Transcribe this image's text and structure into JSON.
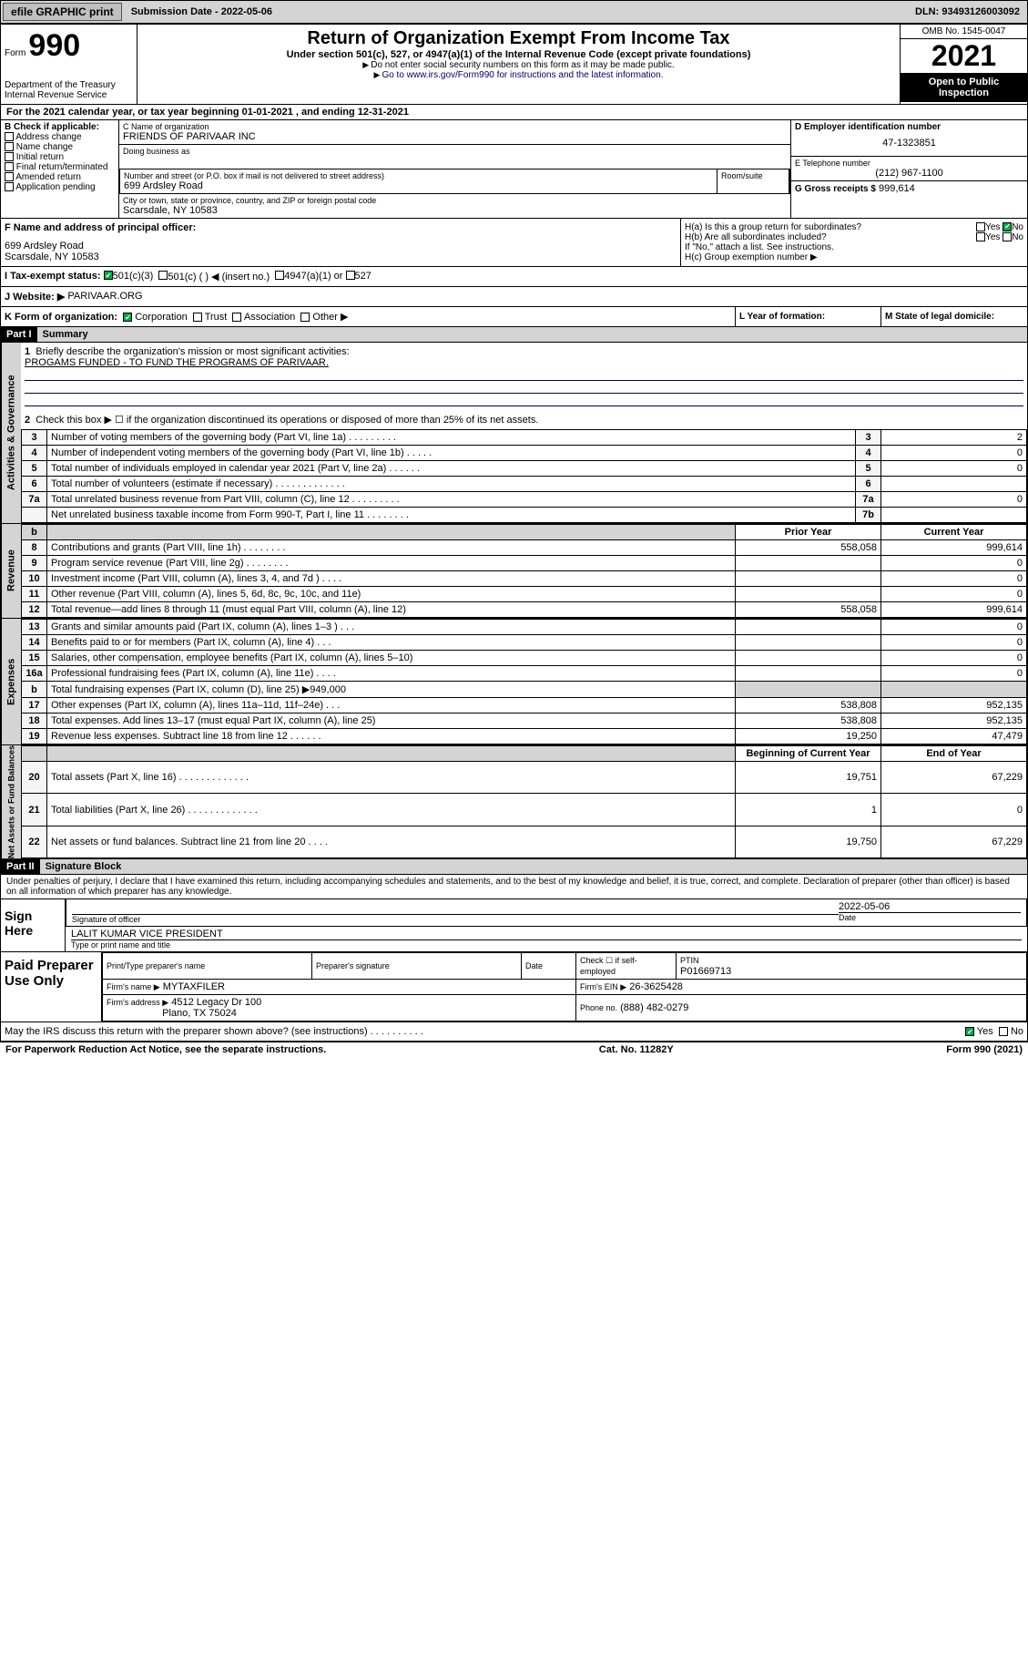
{
  "topbar": {
    "efile": "efile GRAPHIC print",
    "sub_label": "Submission Date - 2022-05-06",
    "dln": "DLN: 93493126003092"
  },
  "header": {
    "form_prefix": "Form",
    "form_num": "990",
    "dept": "Department of the Treasury\nInternal Revenue Service",
    "title": "Return of Organization Exempt From Income Tax",
    "sub": "Under section 501(c), 527, or 4947(a)(1) of the Internal Revenue Code (except private foundations)",
    "warn": "Do not enter social security numbers on this form as it may be made public.",
    "goto": "Go to www.irs.gov/Form990 for instructions and the latest information.",
    "omb": "OMB No. 1545-0047",
    "year": "2021",
    "inspection": "Open to Public Inspection"
  },
  "period": "For the 2021 calendar year, or tax year beginning 01-01-2021   , and ending 12-31-2021",
  "sectionB": {
    "label": "B Check if applicable:",
    "items": [
      "Address change",
      "Name change",
      "Initial return",
      "Final return/terminated",
      "Amended return",
      "Application pending"
    ]
  },
  "sectionC": {
    "name_label": "C Name of organization",
    "name": "FRIENDS OF PARIVAAR INC",
    "dba_label": "Doing business as",
    "dba": "",
    "street_label": "Number and street (or P.O. box if mail is not delivered to street address)",
    "suite_label": "Room/suite",
    "street": "699 Ardsley Road",
    "city_label": "City or town, state or province, country, and ZIP or foreign postal code",
    "city": "Scarsdale, NY  10583"
  },
  "sectionD": {
    "label": "D Employer identification number",
    "ein": "47-1323851"
  },
  "sectionE": {
    "label": "E Telephone number",
    "phone": "(212) 967-1100"
  },
  "sectionG": {
    "label": "G Gross receipts $",
    "amount": "999,614"
  },
  "sectionF": {
    "label": "F Name and address of principal officer:",
    "addr1": "699 Ardsley Road",
    "addr2": "Scarsdale, NY  10583"
  },
  "sectionH": {
    "ha": "H(a)  Is this a group return for subordinates?",
    "hb": "H(b)  Are all subordinates included?",
    "hb_note": "If \"No,\" attach a list. See instructions.",
    "hc": "H(c)  Group exemption number ▶",
    "yes": "Yes",
    "no": "No"
  },
  "sectionI": {
    "label": "I   Tax-exempt status:",
    "opts": [
      "501(c)(3)",
      "501(c) (  ) ◀ (insert no.)",
      "4947(a)(1) or",
      "527"
    ]
  },
  "sectionJ": {
    "label": "J   Website: ▶",
    "site": "PARIVAAR.ORG"
  },
  "sectionK": {
    "label": "K Form of organization:",
    "opts": [
      "Corporation",
      "Trust",
      "Association",
      "Other ▶"
    ]
  },
  "sectionL": {
    "label": "L Year of formation:",
    "val": ""
  },
  "sectionM": {
    "label": "M State of legal domicile:",
    "val": ""
  },
  "part1": {
    "hdr": "Part I",
    "title": "Summary",
    "line1": "Briefly describe the organization's mission or most significant activities:",
    "mission": "PROGAMS FUNDED - TO FUND THE PROGRAMS OF PARIVAAR.",
    "line2": "Check this box ▶ ☐  if the organization discontinued its operations or disposed of more than 25% of its net assets.",
    "rows_ag": [
      {
        "n": "3",
        "t": "Number of voting members of the governing body (Part VI, line 1a)   .    .    .    .    .    .    .    .    .",
        "box": "3",
        "v": "2"
      },
      {
        "n": "4",
        "t": "Number of independent voting members of the governing body (Part VI, line 1b)   .    .    .    .    .",
        "box": "4",
        "v": "0"
      },
      {
        "n": "5",
        "t": "Total number of individuals employed in calendar year 2021 (Part V, line 2a)   .    .    .    .    .    .",
        "box": "5",
        "v": "0"
      },
      {
        "n": "6",
        "t": "Total number of volunteers (estimate if necessary)   .    .    .    .    .    .    .    .    .    .    .    .    .",
        "box": "6",
        "v": ""
      },
      {
        "n": "7a",
        "t": "Total unrelated business revenue from Part VIII, column (C), line 12  .    .    .    .    .    .    .    .    .",
        "box": "7a",
        "v": "0"
      },
      {
        "n": "",
        "t": "Net unrelated business taxable income from Form 990-T, Part I, line 11   .    .    .    .    .    .    .    .",
        "box": "7b",
        "v": ""
      }
    ],
    "col_py": "Prior Year",
    "col_cy": "Current Year",
    "rows_rev": [
      {
        "n": "8",
        "t": "Contributions and grants (Part VIII, line 1h)   .    .    .    .    .    .    .    .",
        "py": "558,058",
        "cy": "999,614"
      },
      {
        "n": "9",
        "t": "Program service revenue (Part VIII, line 2g)   .    .    .    .    .    .    .    .",
        "py": "",
        "cy": "0"
      },
      {
        "n": "10",
        "t": "Investment income (Part VIII, column (A), lines 3, 4, and 7d )   .    .    .    .",
        "py": "",
        "cy": "0"
      },
      {
        "n": "11",
        "t": "Other revenue (Part VIII, column (A), lines 5, 6d, 8c, 9c, 10c, and 11e)",
        "py": "",
        "cy": "0"
      },
      {
        "n": "12",
        "t": "Total revenue—add lines 8 through 11 (must equal Part VIII, column (A), line 12)",
        "py": "558,058",
        "cy": "999,614"
      }
    ],
    "rows_exp": [
      {
        "n": "13",
        "t": "Grants and similar amounts paid (Part IX, column (A), lines 1–3 )   .    .    .",
        "py": "",
        "cy": "0"
      },
      {
        "n": "14",
        "t": "Benefits paid to or for members (Part IX, column (A), line 4)   .    .    .",
        "py": "",
        "cy": "0"
      },
      {
        "n": "15",
        "t": "Salaries, other compensation, employee benefits (Part IX, column (A), lines 5–10)",
        "py": "",
        "cy": "0"
      },
      {
        "n": "16a",
        "t": "Professional fundraising fees (Part IX, column (A), line 11e)   .    .    .    .",
        "py": "",
        "cy": "0"
      },
      {
        "n": "b",
        "t": "Total fundraising expenses (Part IX, column (D), line 25) ▶949,000",
        "py": "shade",
        "cy": "shade"
      },
      {
        "n": "17",
        "t": "Other expenses (Part IX, column (A), lines 11a–11d, 11f–24e)   .    .    .",
        "py": "538,808",
        "cy": "952,135"
      },
      {
        "n": "18",
        "t": "Total expenses. Add lines 13–17 (must equal Part IX, column (A), line 25)",
        "py": "538,808",
        "cy": "952,135"
      },
      {
        "n": "19",
        "t": "Revenue less expenses. Subtract line 18 from line 12   .    .    .    .    .    .",
        "py": "19,250",
        "cy": "47,479"
      }
    ],
    "col_boy": "Beginning of Current Year",
    "col_eoy": "End of Year",
    "rows_na": [
      {
        "n": "20",
        "t": "Total assets (Part X, line 16)   .    .    .    .    .    .    .    .    .    .    .    .    .",
        "py": "19,751",
        "cy": "67,229"
      },
      {
        "n": "21",
        "t": "Total liabilities (Part X, line 26)   .    .    .    .    .    .    .    .    .    .    .    .    .",
        "py": "1",
        "cy": "0"
      },
      {
        "n": "22",
        "t": "Net assets or fund balances. Subtract line 21 from line 20   .    .    .    .",
        "py": "19,750",
        "cy": "67,229"
      }
    ],
    "vlabels": {
      "ag": "Activities & Governance",
      "rev": "Revenue",
      "exp": "Expenses",
      "na": "Net Assets or Fund Balances"
    }
  },
  "part2": {
    "hdr": "Part II",
    "title": "Signature Block",
    "decl": "Under penalties of perjury, I declare that I have examined this return, including accompanying schedules and statements, and to the best of my knowledge and belief, it is true, correct, and complete. Declaration of preparer (other than officer) is based on all information of which preparer has any knowledge.",
    "sign_here": "Sign Here",
    "sig_officer": "Signature of officer",
    "date": "Date",
    "sig_date": "2022-05-06",
    "officer_name": "LALIT KUMAR  VICE PRESIDENT",
    "type_name": "Type or print name and title",
    "paid": "Paid Preparer Use Only",
    "prep_name_label": "Print/Type preparer's name",
    "prep_sig_label": "Preparer's signature",
    "date_label": "Date",
    "check_self": "Check ☐ if self-employed",
    "ptin_label": "PTIN",
    "ptin": "P01669713",
    "firm_name_label": "Firm's name   ▶",
    "firm_name": "MYTAXFILER",
    "firm_ein_label": "Firm's EIN ▶",
    "firm_ein": "26-3625428",
    "firm_addr_label": "Firm's address ▶",
    "firm_addr1": "4512 Legacy Dr 100",
    "firm_addr2": "Plano, TX  75024",
    "firm_phone_label": "Phone no.",
    "firm_phone": "(888) 482-0279",
    "discuss": "May the IRS discuss this return with the preparer shown above? (see instructions)   .    .    .    .    .    .    .    .    .    .",
    "yes": "Yes",
    "no": "No"
  },
  "footer": {
    "pra": "For Paperwork Reduction Act Notice, see the separate instructions.",
    "cat": "Cat. No. 11282Y",
    "form": "Form 990 (2021)"
  }
}
